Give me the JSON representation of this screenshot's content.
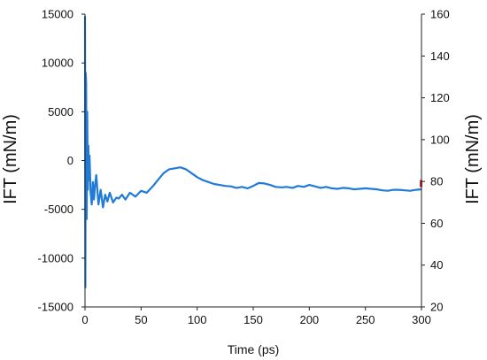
{
  "chart_data": {
    "type": "line",
    "xlabel": "Time (ps)",
    "ylabel": "IFT (mN/m)",
    "y2label": "IFT (mN/m)",
    "xlim": [
      0,
      300
    ],
    "ylim": [
      -15000,
      15000
    ],
    "y2lim": [
      20,
      160
    ],
    "x_ticks": [
      "0",
      "50",
      "100",
      "150",
      "200",
      "250",
      "300"
    ],
    "y_ticks": [
      "-15000",
      "-10000",
      "-5000",
      "0",
      "5000",
      "10000",
      "15000"
    ],
    "y2_ticks": [
      "20",
      "40",
      "60",
      "80",
      "100",
      "120",
      "140",
      "160"
    ],
    "grid": false,
    "legend": "none",
    "series": [
      {
        "color": "#1f7ad8",
        "axis": "left",
        "x": [
          0,
          0.3,
          0.6,
          1,
          1.5,
          2,
          2.5,
          3,
          3.5,
          4,
          5,
          6,
          7,
          8,
          9,
          10,
          12,
          14,
          16,
          18,
          20,
          22,
          25,
          28,
          30,
          33,
          36,
          40,
          45,
          50,
          55,
          60,
          65,
          70,
          75,
          80,
          85,
          90,
          95,
          100,
          105,
          110,
          115,
          120,
          125,
          130,
          135,
          140,
          145,
          150,
          155,
          160,
          165,
          170,
          175,
          180,
          185,
          190,
          195,
          200,
          205,
          210,
          215,
          220,
          225,
          230,
          235,
          240,
          245,
          250,
          255,
          260,
          265,
          270,
          275,
          280,
          285,
          290,
          295,
          300
        ],
        "values": [
          14800,
          -13000,
          9000,
          8000,
          -6000,
          5000,
          -3000,
          1500,
          -2000,
          500,
          -3200,
          -4500,
          -2200,
          -4000,
          -2500,
          -1500,
          -4500,
          -3000,
          -4800,
          -3500,
          -4200,
          -3300,
          -4300,
          -3800,
          -3900,
          -3500,
          -4000,
          -3300,
          -3700,
          -3100,
          -3300,
          -2700,
          -2000,
          -1300,
          -900,
          -800,
          -700,
          -900,
          -1300,
          -1700,
          -2000,
          -2200,
          -2400,
          -2500,
          -2600,
          -2650,
          -2800,
          -2700,
          -2850,
          -2600,
          -2300,
          -2350,
          -2500,
          -2700,
          -2750,
          -2700,
          -2800,
          -2600,
          -2700,
          -2500,
          -2650,
          -2800,
          -2700,
          -2850,
          -2900,
          -2800,
          -2850,
          -2950,
          -2900,
          -2850,
          -2900,
          -2950,
          -3050,
          -3100,
          -3000,
          -3000,
          -3050,
          -3100,
          -3000,
          -2950
        ]
      }
    ],
    "marker": {
      "y2": 79,
      "color": "#d02a2a"
    }
  }
}
